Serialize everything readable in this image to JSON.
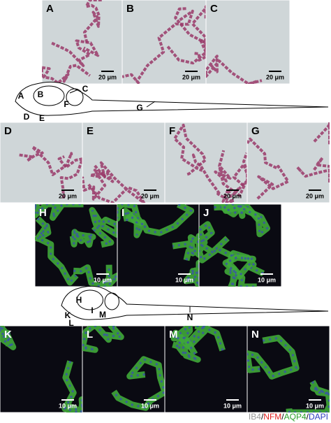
{
  "panels": [
    {
      "label": "A",
      "scale": "20 μm"
    },
    {
      "label": "B",
      "scale": "20 μm"
    },
    {
      "label": "C",
      "scale": "20 μm"
    },
    {
      "label": "D",
      "scale": "20 μm"
    },
    {
      "label": "E",
      "scale": "20 μm"
    },
    {
      "label": "F",
      "scale": "20 μm"
    },
    {
      "label": "G",
      "scale": "20 μm"
    },
    {
      "label": "H",
      "scale": "10 μm"
    },
    {
      "label": "I",
      "scale": "10 μm"
    },
    {
      "label": "J",
      "scale": "10 μm"
    },
    {
      "label": "K",
      "scale": "10 μm"
    },
    {
      "label": "L",
      "scale": "10 μm"
    },
    {
      "label": "M",
      "scale": "10 μm"
    },
    {
      "label": "N",
      "scale": "10 μm"
    }
  ],
  "diagrams": [
    {
      "labels": [
        "A",
        "B",
        "C",
        "D",
        "E",
        "F",
        "G"
      ]
    },
    {
      "labels": [
        "H",
        "I",
        "M",
        "K",
        "L",
        "N"
      ]
    }
  ],
  "legend": [
    "IB4",
    "/",
    "NFM",
    "/",
    "AQP4",
    "/",
    "DAPI"
  ]
}
